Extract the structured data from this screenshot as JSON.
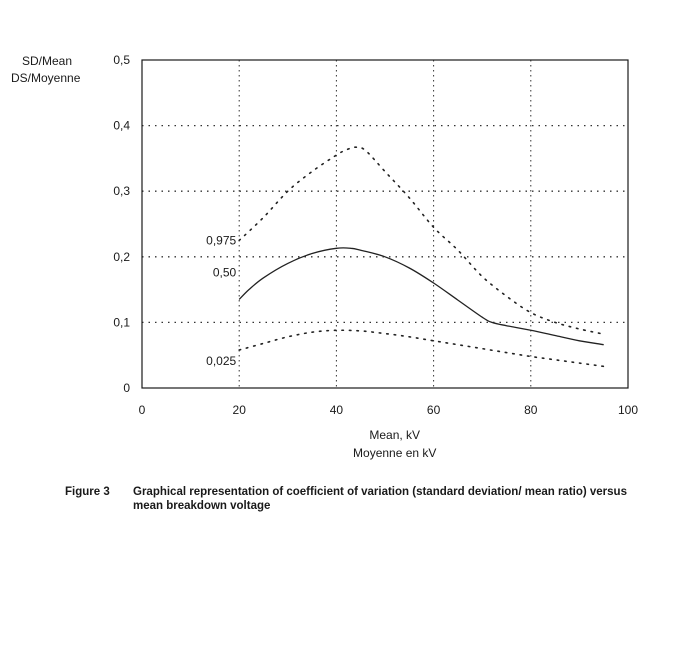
{
  "chart_data": {
    "type": "line",
    "xlabel": [
      "Mean, kV",
      "Moyenne en kV"
    ],
    "ylabel": [
      "SD/Mean",
      "DS/Moyenne"
    ],
    "xlim": [
      0,
      100
    ],
    "ylim": [
      0,
      0.5
    ],
    "x_ticks": [
      0,
      20,
      40,
      60,
      80,
      100
    ],
    "x_tick_labels": [
      "0",
      "20",
      "40",
      "60",
      "80",
      "100"
    ],
    "y_ticks": [
      0,
      0.1,
      0.2,
      0.3,
      0.4,
      0.5
    ],
    "y_tick_labels": [
      "0",
      "0,1",
      "0,2",
      "0,3",
      "0,4",
      "0,5"
    ],
    "grid": true,
    "legend": "none",
    "series": [
      {
        "name": "0,975",
        "style": "dotted",
        "x": [
          20,
          25,
          30,
          35,
          40,
          42,
          44,
          46,
          50,
          55,
          60,
          65,
          70,
          75,
          80,
          85,
          90,
          95
        ],
        "y": [
          0.225,
          0.26,
          0.3,
          0.33,
          0.355,
          0.363,
          0.367,
          0.362,
          0.33,
          0.29,
          0.245,
          0.21,
          0.17,
          0.14,
          0.115,
          0.1,
          0.09,
          0.082
        ]
      },
      {
        "name": "0,50",
        "style": "solid",
        "x": [
          20,
          22,
          25,
          30,
          35,
          40,
          43,
          45,
          50,
          55,
          60,
          65,
          70,
          72,
          75,
          80,
          85,
          90,
          95
        ],
        "y": [
          0.135,
          0.15,
          0.168,
          0.19,
          0.205,
          0.213,
          0.213,
          0.21,
          0.2,
          0.183,
          0.16,
          0.134,
          0.108,
          0.1,
          0.095,
          0.088,
          0.08,
          0.072,
          0.066
        ]
      },
      {
        "name": "0,025",
        "style": "dotted",
        "x": [
          20,
          25,
          30,
          35,
          40,
          45,
          50,
          55,
          60,
          65,
          70,
          75,
          80,
          85,
          90,
          95
        ],
        "y": [
          0.058,
          0.068,
          0.078,
          0.085,
          0.088,
          0.087,
          0.083,
          0.078,
          0.072,
          0.066,
          0.06,
          0.054,
          0.048,
          0.043,
          0.038,
          0.033
        ]
      }
    ]
  },
  "caption": {
    "figure_number": "Figure 3",
    "text": "Graphical representation of coefficient of variation (standard deviation/ mean ratio) versus mean breakdown voltage"
  }
}
